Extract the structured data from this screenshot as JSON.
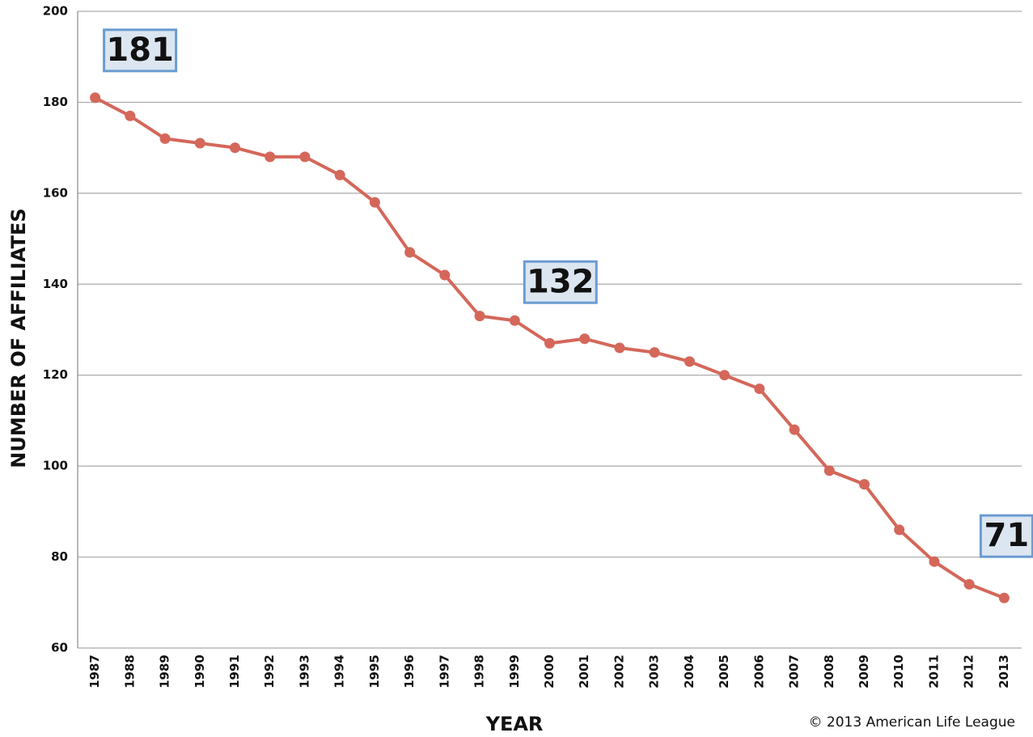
{
  "chart_data": {
    "type": "line",
    "y_label": "NUMBER OF AFFILIATES",
    "x_label": "YEAR",
    "source": "© 2013 American Life League",
    "categories": [
      "1987",
      "1988",
      "1989",
      "1990",
      "1991",
      "1992",
      "1993",
      "1994",
      "1995",
      "1996",
      "1997",
      "1998",
      "1999",
      "2000",
      "2001",
      "2002",
      "2003",
      "2004",
      "2005",
      "2006",
      "2007",
      "2008",
      "2009",
      "2010",
      "2011",
      "2012",
      "2013"
    ],
    "values": [
      181,
      177,
      172,
      171,
      170,
      168,
      168,
      164,
      158,
      147,
      142,
      133,
      132,
      127,
      128,
      126,
      125,
      123,
      120,
      117,
      108,
      99,
      96,
      86,
      79,
      74,
      71
    ],
    "color": "#d4675a",
    "ylim": [
      60,
      200
    ],
    "yticks": [
      60,
      80,
      100,
      120,
      140,
      160,
      180,
      200
    ],
    "grid": true,
    "annotations": [
      {
        "x": "1987",
        "text": "181"
      },
      {
        "x": "1999",
        "text": "132"
      },
      {
        "x": "2013",
        "text": "71"
      }
    ]
  }
}
